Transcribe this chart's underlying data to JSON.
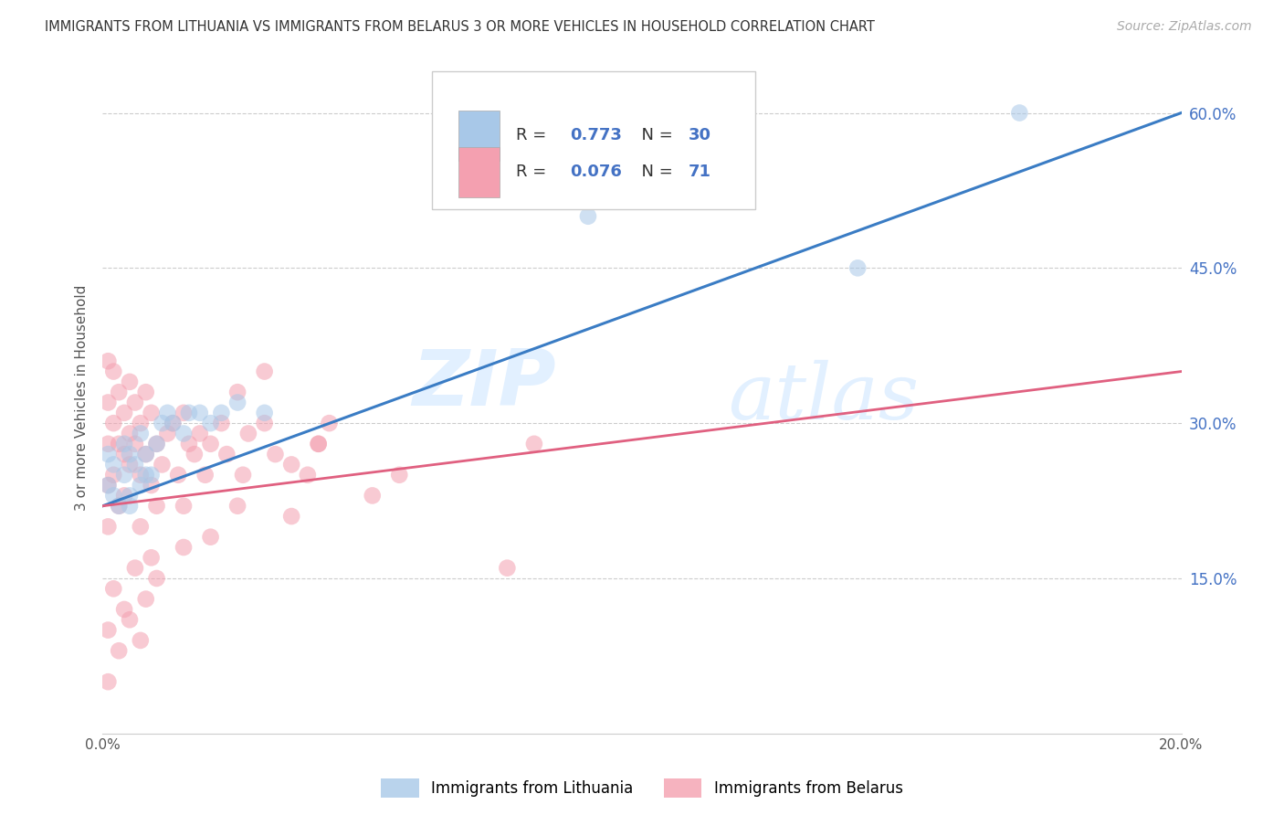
{
  "title": "IMMIGRANTS FROM LITHUANIA VS IMMIGRANTS FROM BELARUS 3 OR MORE VEHICLES IN HOUSEHOLD CORRELATION CHART",
  "source": "Source: ZipAtlas.com",
  "ylabel": "3 or more Vehicles in Household",
  "series1_label": "Immigrants from Lithuania",
  "series2_label": "Immigrants from Belarus",
  "R1": 0.773,
  "N1": 30,
  "R2": 0.076,
  "N2": 71,
  "color1": "#a8c8e8",
  "color2": "#f4a0b0",
  "line_color1": "#3a7cc4",
  "line_color2": "#e06080",
  "xmin": 0.0,
  "xmax": 0.2,
  "ymin": 0.0,
  "ymax": 0.65,
  "watermark_zip": "ZIP",
  "watermark_atlas": "atlas",
  "lit_x": [
    0.001,
    0.001,
    0.002,
    0.002,
    0.003,
    0.004,
    0.004,
    0.005,
    0.005,
    0.006,
    0.007,
    0.007,
    0.008,
    0.009,
    0.01,
    0.011,
    0.012,
    0.013,
    0.015,
    0.016,
    0.018,
    0.02,
    0.022,
    0.025,
    0.03,
    0.005,
    0.008,
    0.09,
    0.14,
    0.17
  ],
  "lit_y": [
    0.24,
    0.27,
    0.23,
    0.26,
    0.22,
    0.25,
    0.28,
    0.23,
    0.27,
    0.26,
    0.24,
    0.29,
    0.27,
    0.25,
    0.28,
    0.3,
    0.31,
    0.3,
    0.29,
    0.31,
    0.31,
    0.3,
    0.31,
    0.32,
    0.31,
    0.22,
    0.25,
    0.5,
    0.45,
    0.6
  ],
  "bel_x": [
    0.001,
    0.001,
    0.001,
    0.001,
    0.001,
    0.002,
    0.002,
    0.002,
    0.003,
    0.003,
    0.003,
    0.004,
    0.004,
    0.004,
    0.005,
    0.005,
    0.005,
    0.006,
    0.006,
    0.007,
    0.007,
    0.007,
    0.008,
    0.008,
    0.009,
    0.009,
    0.01,
    0.01,
    0.011,
    0.012,
    0.013,
    0.014,
    0.015,
    0.015,
    0.016,
    0.017,
    0.018,
    0.019,
    0.02,
    0.022,
    0.023,
    0.025,
    0.026,
    0.027,
    0.03,
    0.032,
    0.035,
    0.038,
    0.04,
    0.042,
    0.001,
    0.002,
    0.003,
    0.004,
    0.005,
    0.006,
    0.007,
    0.008,
    0.009,
    0.01,
    0.015,
    0.02,
    0.025,
    0.03,
    0.035,
    0.04,
    0.05,
    0.055,
    0.075,
    0.08,
    0.001
  ],
  "bel_y": [
    0.28,
    0.32,
    0.24,
    0.36,
    0.2,
    0.3,
    0.35,
    0.25,
    0.28,
    0.33,
    0.22,
    0.27,
    0.31,
    0.23,
    0.29,
    0.34,
    0.26,
    0.28,
    0.32,
    0.25,
    0.3,
    0.2,
    0.27,
    0.33,
    0.24,
    0.31,
    0.28,
    0.22,
    0.26,
    0.29,
    0.3,
    0.25,
    0.31,
    0.22,
    0.28,
    0.27,
    0.29,
    0.25,
    0.28,
    0.3,
    0.27,
    0.33,
    0.25,
    0.29,
    0.3,
    0.27,
    0.26,
    0.25,
    0.28,
    0.3,
    0.1,
    0.14,
    0.08,
    0.12,
    0.11,
    0.16,
    0.09,
    0.13,
    0.17,
    0.15,
    0.18,
    0.19,
    0.22,
    0.35,
    0.21,
    0.28,
    0.23,
    0.25,
    0.16,
    0.28,
    0.05
  ],
  "lit_line": [
    0.22,
    0.6
  ],
  "bel_line": [
    0.22,
    0.35
  ]
}
